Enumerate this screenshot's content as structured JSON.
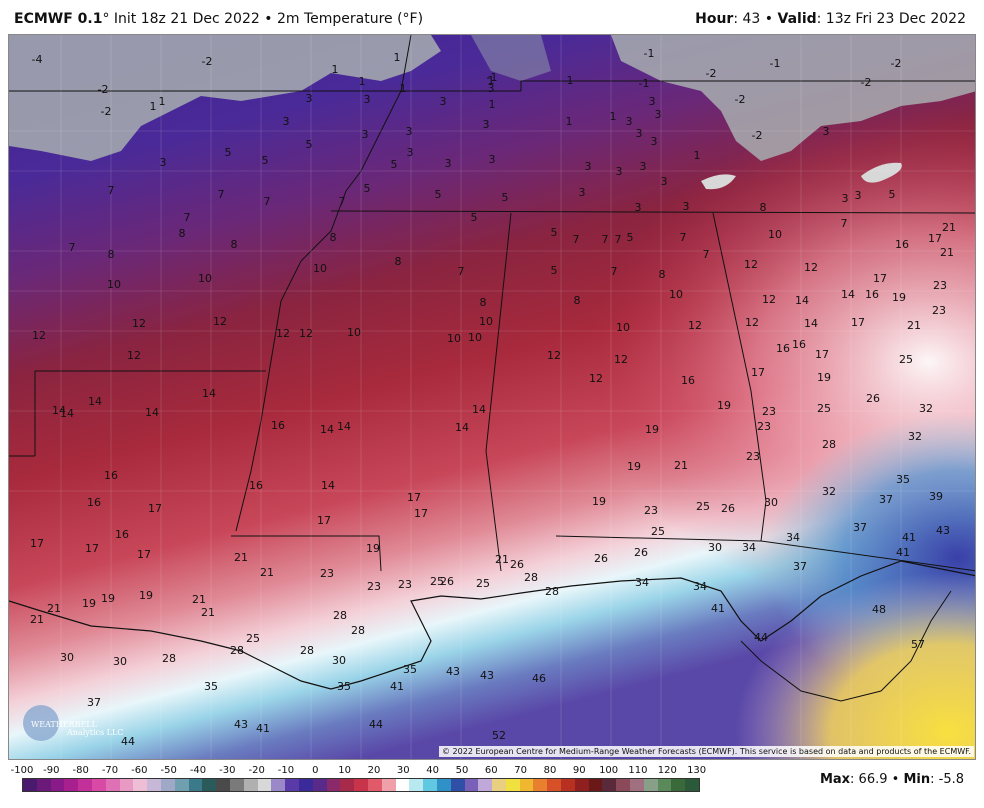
{
  "header": {
    "model": "ECMWF 0.1",
    "degree": "°",
    "init": " Init 18z 21 Dec 2022",
    "sep": " • ",
    "variable": "2m Temperature (°F)",
    "hour_label": "Hour",
    "hour_value": ": 43",
    "valid_label": "Valid",
    "valid_value": ": 13z Fri 23 Dec 2022"
  },
  "copyright": "© 2022 European Centre for Medium-Range Weather Forecasts (ECMWF). This service is based on data and products of the ECMWF.",
  "stats": {
    "max_label": "Max",
    "max_value": ": 66.9",
    "sep": " • ",
    "min_label": "Min",
    "min_value": ": -5.8"
  },
  "colorbar": {
    "ticks": [
      "-100",
      "-90",
      "-80",
      "-70",
      "-60",
      "-50",
      "-40",
      "-30",
      "-20",
      "-10",
      "0",
      "10",
      "20",
      "30",
      "40",
      "50",
      "60",
      "70",
      "80",
      "90",
      "100",
      "110",
      "120",
      "130"
    ],
    "colors": [
      "#4a1a6e",
      "#6b1a7a",
      "#8a1a8a",
      "#a8208f",
      "#c4309a",
      "#d84aa6",
      "#e070b4",
      "#e899c4",
      "#eebed6",
      "#c8b8d8",
      "#a0a8c8",
      "#70a0b0",
      "#3a7a8a",
      "#2a5a5a",
      "#4a4a4a",
      "#7a7a7a",
      "#b0b0b0",
      "#d8d8d8",
      "#9a88c8",
      "#5a3aa8",
      "#3a2a9a",
      "#5a2a8a",
      "#8a2a6a",
      "#a82a4a",
      "#c8344a",
      "#e05a6a",
      "#f0a0a8",
      "#ffffff",
      "#b8e8f0",
      "#60c8e0",
      "#3090c8",
      "#3050a8",
      "#7a60b8",
      "#c0a8d8",
      "#e8d080",
      "#f0e040",
      "#f0b830",
      "#e88030",
      "#d85028",
      "#b83020",
      "#902020",
      "#6a1818",
      "#5a2a3a",
      "#8a4a5a",
      "#a07080",
      "#88a088",
      "#5a8a5a",
      "#3a6a3a",
      "#2a5a3a"
    ]
  },
  "logo": {
    "name": "WEATHERBELL",
    "sub": "Analytics LLC"
  },
  "map": {
    "labels": [
      [
        "-4",
        36,
        58
      ],
      [
        "-2",
        206,
        60
      ],
      [
        "-2",
        102,
        88
      ],
      [
        "-2",
        105,
        110
      ],
      [
        "1",
        334,
        68
      ],
      [
        "1",
        396,
        56
      ],
      [
        "1",
        361,
        80
      ],
      [
        "1",
        402,
        87
      ],
      [
        "-1",
        491,
        76
      ],
      [
        "1",
        490,
        79
      ],
      [
        "1",
        569,
        79
      ],
      [
        "-1",
        648,
        52
      ],
      [
        "-1",
        643,
        82
      ],
      [
        "-1",
        774,
        62
      ],
      [
        "-2",
        710,
        72
      ],
      [
        "-2",
        895,
        62
      ],
      [
        "-2",
        865,
        81
      ],
      [
        "-2",
        739,
        98
      ],
      [
        "-2",
        756,
        134
      ],
      [
        "3",
        825,
        130
      ],
      [
        "1",
        161,
        100
      ],
      [
        "1",
        152,
        105
      ],
      [
        "3",
        308,
        97
      ],
      [
        "3",
        285,
        120
      ],
      [
        "3",
        366,
        98
      ],
      [
        "3",
        442,
        100
      ],
      [
        "1",
        491,
        103
      ],
      [
        "3",
        490,
        87
      ],
      [
        "3",
        651,
        100
      ],
      [
        "3",
        364,
        133
      ],
      [
        "3",
        408,
        130
      ],
      [
        "3",
        485,
        123
      ],
      [
        "1",
        568,
        120
      ],
      [
        "1",
        612,
        115
      ],
      [
        "3",
        628,
        120
      ],
      [
        "3",
        657,
        113
      ],
      [
        "3",
        638,
        132
      ],
      [
        "3",
        653,
        140
      ],
      [
        "5",
        227,
        151
      ],
      [
        "5",
        264,
        159
      ],
      [
        "5",
        308,
        143
      ],
      [
        "3",
        162,
        161
      ],
      [
        "3",
        409,
        151
      ],
      [
        "3",
        447,
        162
      ],
      [
        "3",
        491,
        158
      ],
      [
        "5",
        393,
        163
      ],
      [
        "3",
        587,
        165
      ],
      [
        "3",
        618,
        170
      ],
      [
        "3",
        642,
        165
      ],
      [
        "1",
        696,
        154
      ],
      [
        "3",
        663,
        180
      ],
      [
        "5",
        366,
        187
      ],
      [
        "5",
        437,
        193
      ],
      [
        "5",
        504,
        196
      ],
      [
        "3",
        581,
        191
      ],
      [
        "3",
        637,
        206
      ],
      [
        "3",
        685,
        205
      ],
      [
        "3",
        857,
        194
      ],
      [
        "5",
        891,
        193
      ],
      [
        "3",
        844,
        197
      ],
      [
        "7",
        110,
        189
      ],
      [
        "7",
        220,
        193
      ],
      [
        "7",
        266,
        200
      ],
      [
        "7",
        341,
        200
      ],
      [
        "7",
        186,
        216
      ],
      [
        "8",
        181,
        232
      ],
      [
        "8",
        233,
        243
      ],
      [
        "8",
        332,
        236
      ],
      [
        "7",
        71,
        246
      ],
      [
        "8",
        110,
        253
      ],
      [
        "5",
        473,
        216
      ],
      [
        "5",
        553,
        231
      ],
      [
        "7",
        575,
        238
      ],
      [
        "7",
        604,
        238
      ],
      [
        "7",
        617,
        238
      ],
      [
        "5",
        629,
        236
      ],
      [
        "7",
        682,
        236
      ],
      [
        "8",
        762,
        206
      ],
      [
        "7",
        843,
        222
      ],
      [
        "10",
        774,
        233
      ],
      [
        "21",
        948,
        226
      ],
      [
        "17",
        934,
        237
      ],
      [
        "21",
        946,
        251
      ],
      [
        "16",
        901,
        243
      ],
      [
        "10",
        204,
        277
      ],
      [
        "10",
        113,
        283
      ],
      [
        "10",
        319,
        267
      ],
      [
        "8",
        397,
        260
      ],
      [
        "7",
        460,
        270
      ],
      [
        "5",
        553,
        269
      ],
      [
        "7",
        613,
        270
      ],
      [
        "8",
        661,
        273
      ],
      [
        "7",
        705,
        253
      ],
      [
        "12",
        750,
        263
      ],
      [
        "12",
        810,
        266
      ],
      [
        "17",
        879,
        277
      ],
      [
        "23",
        939,
        284
      ],
      [
        "14",
        847,
        293
      ],
      [
        "16",
        871,
        293
      ],
      [
        "19",
        898,
        296
      ],
      [
        "12",
        768,
        298
      ],
      [
        "14",
        801,
        299
      ],
      [
        "10",
        675,
        293
      ],
      [
        "8",
        576,
        299
      ],
      [
        "8",
        482,
        301
      ],
      [
        "10",
        485,
        320
      ],
      [
        "12",
        138,
        322
      ],
      [
        "12",
        219,
        320
      ],
      [
        "12",
        38,
        334
      ],
      [
        "12",
        282,
        332
      ],
      [
        "12",
        305,
        332
      ],
      [
        "10",
        353,
        331
      ],
      [
        "10",
        453,
        337
      ],
      [
        "10",
        474,
        336
      ],
      [
        "10",
        622,
        326
      ],
      [
        "12",
        694,
        324
      ],
      [
        "12",
        751,
        321
      ],
      [
        "14",
        810,
        322
      ],
      [
        "17",
        857,
        321
      ],
      [
        "21",
        913,
        324
      ],
      [
        "23",
        938,
        309
      ],
      [
        "12",
        133,
        354
      ],
      [
        "12",
        553,
        354
      ],
      [
        "12",
        620,
        358
      ],
      [
        "16",
        782,
        347
      ],
      [
        "16",
        798,
        343
      ],
      [
        "17",
        821,
        353
      ],
      [
        "25",
        905,
        358
      ],
      [
        "12",
        595,
        377
      ],
      [
        "16",
        687,
        379
      ],
      [
        "17",
        757,
        371
      ],
      [
        "19",
        823,
        376
      ],
      [
        "14",
        208,
        392
      ],
      [
        "14",
        94,
        400
      ],
      [
        "14",
        151,
        411
      ],
      [
        "14",
        58,
        409
      ],
      [
        "14",
        66,
        412
      ],
      [
        "16",
        277,
        424
      ],
      [
        "14",
        326,
        428
      ],
      [
        "14",
        343,
        425
      ],
      [
        "14",
        478,
        408
      ],
      [
        "14",
        461,
        426
      ],
      [
        "19",
        723,
        404
      ],
      [
        "23",
        768,
        410
      ],
      [
        "23",
        763,
        425
      ],
      [
        "25",
        823,
        407
      ],
      [
        "26",
        872,
        397
      ],
      [
        "32",
        925,
        407
      ],
      [
        "32",
        914,
        435
      ],
      [
        "19",
        651,
        428
      ],
      [
        "28",
        828,
        443
      ],
      [
        "23",
        752,
        455
      ],
      [
        "19",
        633,
        465
      ],
      [
        "21",
        680,
        464
      ],
      [
        "16",
        110,
        474
      ],
      [
        "16",
        255,
        484
      ],
      [
        "14",
        327,
        484
      ],
      [
        "35",
        902,
        478
      ],
      [
        "39",
        935,
        495
      ],
      [
        "16",
        93,
        501
      ],
      [
        "17",
        154,
        507
      ],
      [
        "17",
        413,
        496
      ],
      [
        "17",
        420,
        512
      ],
      [
        "17",
        323,
        519
      ],
      [
        "19",
        598,
        500
      ],
      [
        "23",
        650,
        509
      ],
      [
        "25",
        702,
        505
      ],
      [
        "26",
        727,
        507
      ],
      [
        "30",
        770,
        501
      ],
      [
        "32",
        828,
        490
      ],
      [
        "37",
        885,
        498
      ],
      [
        "16",
        121,
        533
      ],
      [
        "37",
        859,
        526
      ],
      [
        "41",
        908,
        536
      ],
      [
        "43",
        942,
        529
      ],
      [
        "17",
        36,
        542
      ],
      [
        "17",
        91,
        547
      ],
      [
        "17",
        143,
        553
      ],
      [
        "19",
        372,
        547
      ],
      [
        "25",
        657,
        530
      ],
      [
        "30",
        714,
        546
      ],
      [
        "34",
        748,
        546
      ],
      [
        "34",
        792,
        536
      ],
      [
        "41",
        902,
        551
      ],
      [
        "21",
        240,
        556
      ],
      [
        "21",
        266,
        571
      ],
      [
        "23",
        326,
        572
      ],
      [
        "21",
        501,
        558
      ],
      [
        "26",
        516,
        563
      ],
      [
        "26",
        600,
        557
      ],
      [
        "26",
        640,
        551
      ],
      [
        "37",
        799,
        565
      ],
      [
        "28",
        530,
        576
      ],
      [
        "28",
        551,
        590
      ],
      [
        "34",
        641,
        581
      ],
      [
        "23",
        373,
        585
      ],
      [
        "23",
        404,
        583
      ],
      [
        "25",
        436,
        580
      ],
      [
        "26",
        446,
        580
      ],
      [
        "25",
        482,
        582
      ],
      [
        "19",
        107,
        597
      ],
      [
        "19",
        145,
        594
      ],
      [
        "19",
        88,
        602
      ],
      [
        "21",
        198,
        598
      ],
      [
        "21",
        53,
        607
      ],
      [
        "21",
        207,
        611
      ],
      [
        "21",
        36,
        618
      ],
      [
        "34",
        699,
        585
      ],
      [
        "41",
        717,
        607
      ],
      [
        "48",
        878,
        608
      ],
      [
        "28",
        339,
        614
      ],
      [
        "28",
        357,
        629
      ],
      [
        "25",
        252,
        637
      ],
      [
        "44",
        760,
        636
      ],
      [
        "57",
        917,
        643
      ],
      [
        "28",
        236,
        649
      ],
      [
        "28",
        306,
        649
      ],
      [
        "30",
        66,
        656
      ],
      [
        "30",
        119,
        660
      ],
      [
        "28",
        168,
        657
      ],
      [
        "30",
        338,
        659
      ],
      [
        "35",
        409,
        668
      ],
      [
        "43",
        452,
        670
      ],
      [
        "43",
        486,
        674
      ],
      [
        "46",
        538,
        677
      ],
      [
        "35",
        210,
        685
      ],
      [
        "35",
        343,
        685
      ],
      [
        "41",
        396,
        685
      ],
      [
        "37",
        93,
        701
      ],
      [
        "43",
        240,
        723
      ],
      [
        "41",
        262,
        727
      ],
      [
        "44",
        375,
        723
      ],
      [
        "52",
        498,
        734
      ],
      [
        "44",
        127,
        740
      ]
    ]
  }
}
